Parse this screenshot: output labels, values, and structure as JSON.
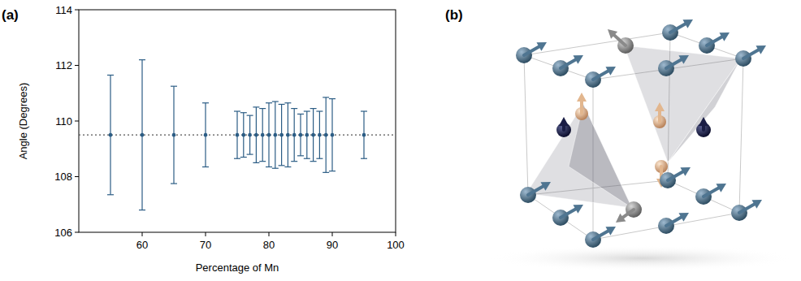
{
  "chart_data": {
    "type": "scatter",
    "panel_label": "(a)",
    "x_label": "Percentage of Mn",
    "y_label": "Angle (Degrees)",
    "x": [
      55,
      60,
      65,
      70,
      75,
      76,
      77,
      78,
      79,
      80,
      81,
      82,
      83,
      84,
      85,
      86,
      87,
      88,
      89,
      90,
      95
    ],
    "values": [
      109.5,
      109.5,
      109.5,
      109.5,
      109.5,
      109.5,
      109.5,
      109.5,
      109.5,
      109.5,
      109.5,
      109.5,
      109.5,
      109.5,
      109.5,
      109.5,
      109.5,
      109.5,
      109.5,
      109.5,
      109.5
    ],
    "errors": [
      2.15,
      2.7,
      1.75,
      1.15,
      0.85,
      0.8,
      0.7,
      1.0,
      0.95,
      1.15,
      1.2,
      1.1,
      1.15,
      0.95,
      0.75,
      0.85,
      0.95,
      0.85,
      1.35,
      1.3,
      0.85
    ],
    "reference_line": 109.5,
    "color": "#2c5d85",
    "marker": "circle",
    "xlim": [
      50,
      100
    ],
    "xticks": [
      60,
      70,
      80,
      90,
      100
    ],
    "ylim": [
      106,
      114
    ],
    "yticks": [
      106,
      108,
      110,
      112,
      114
    ]
  },
  "diagram": {
    "panel_label": "(b)"
  }
}
